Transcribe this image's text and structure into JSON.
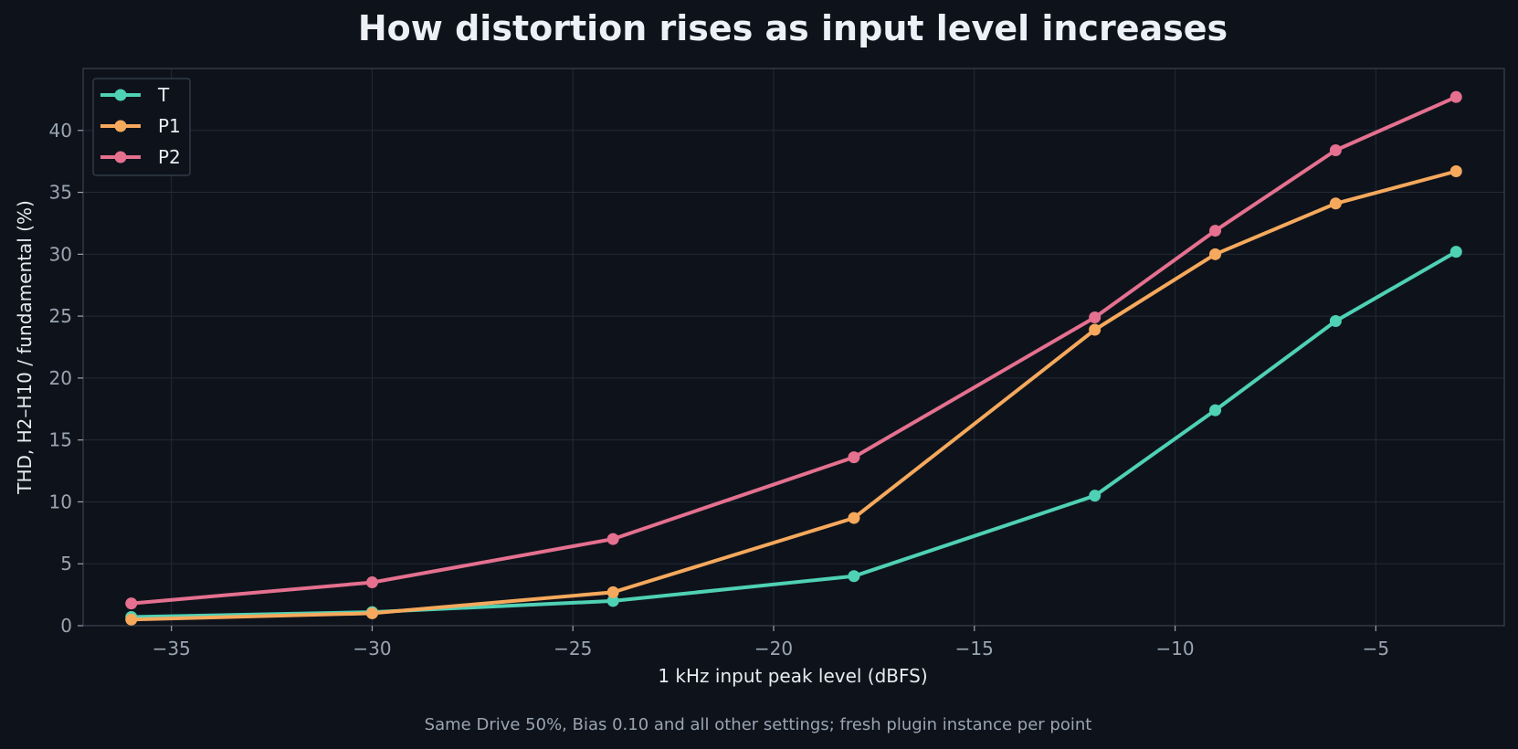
{
  "chart_data": {
    "type": "line",
    "title": "How distortion rises as input level increases",
    "xlabel": "1 kHz input peak level (dBFS)",
    "ylabel": "THD, H2–H10 / fundamental (%)",
    "caption": "Same Drive 50%, Bias 0.10 and all other settings; fresh plugin instance per point",
    "xlim": [
      -37.2,
      -1.8
    ],
    "ylim": [
      0,
      45
    ],
    "xticks": [
      -35,
      -30,
      -25,
      -20,
      -15,
      -10,
      -5
    ],
    "xtick_labels": [
      "−35",
      "−30",
      "−25",
      "−20",
      "−15",
      "−10",
      "−5"
    ],
    "yticks": [
      0,
      5,
      10,
      15,
      20,
      25,
      30,
      35,
      40
    ],
    "ytick_labels": [
      "0",
      "5",
      "10",
      "15",
      "20",
      "25",
      "30",
      "35",
      "40"
    ],
    "grid": true,
    "legend_position": "top-left",
    "x": [
      -36,
      -30,
      -24,
      -18,
      -12,
      -9,
      -6,
      -3
    ],
    "series": [
      {
        "name": "T",
        "color": "#4fd1b5",
        "values": [
          0.7,
          1.1,
          2.0,
          4.0,
          10.5,
          17.4,
          24.6,
          30.2
        ]
      },
      {
        "name": "P1",
        "color": "#f6a95c",
        "values": [
          0.5,
          1.0,
          2.7,
          8.7,
          23.9,
          30.0,
          34.1,
          36.7
        ]
      },
      {
        "name": "P2",
        "color": "#e5708f",
        "values": [
          1.8,
          3.5,
          7.0,
          13.6,
          24.9,
          31.9,
          38.4,
          42.7
        ]
      }
    ]
  }
}
